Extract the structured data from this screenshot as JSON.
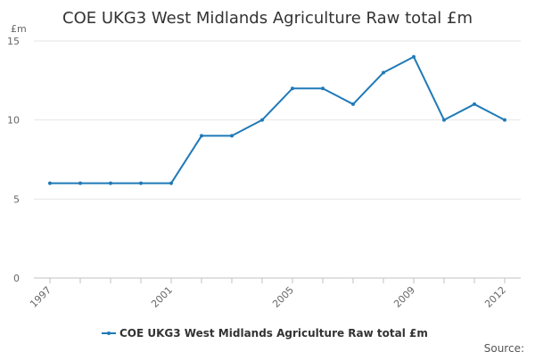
{
  "chart_data": {
    "type": "line",
    "title": "COE UKG3 West Midlands Agriculture Raw total £m",
    "ylabel": "£m",
    "xlabel": "",
    "x": [
      1997,
      1998,
      1999,
      2000,
      2001,
      2002,
      2003,
      2004,
      2005,
      2006,
      2007,
      2008,
      2009,
      2010,
      2011,
      2012
    ],
    "x_tick_labels": [
      "1997",
      "2001",
      "2005",
      "2009",
      "2012"
    ],
    "y_tick_labels": [
      "0",
      "5",
      "10",
      "15"
    ],
    "xlim": [
      1997,
      2012
    ],
    "ylim": [
      0,
      15
    ],
    "grid": true,
    "legend_position": "bottom-center",
    "series": [
      {
        "name": "COE UKG3 West Midlands Agriculture Raw total £m",
        "color": "#1f7ab8",
        "values": [
          6,
          6,
          6,
          6,
          6,
          9,
          9,
          10,
          12,
          12,
          11,
          13,
          14,
          10,
          11,
          10
        ]
      }
    ],
    "source_label": "Source:"
  }
}
